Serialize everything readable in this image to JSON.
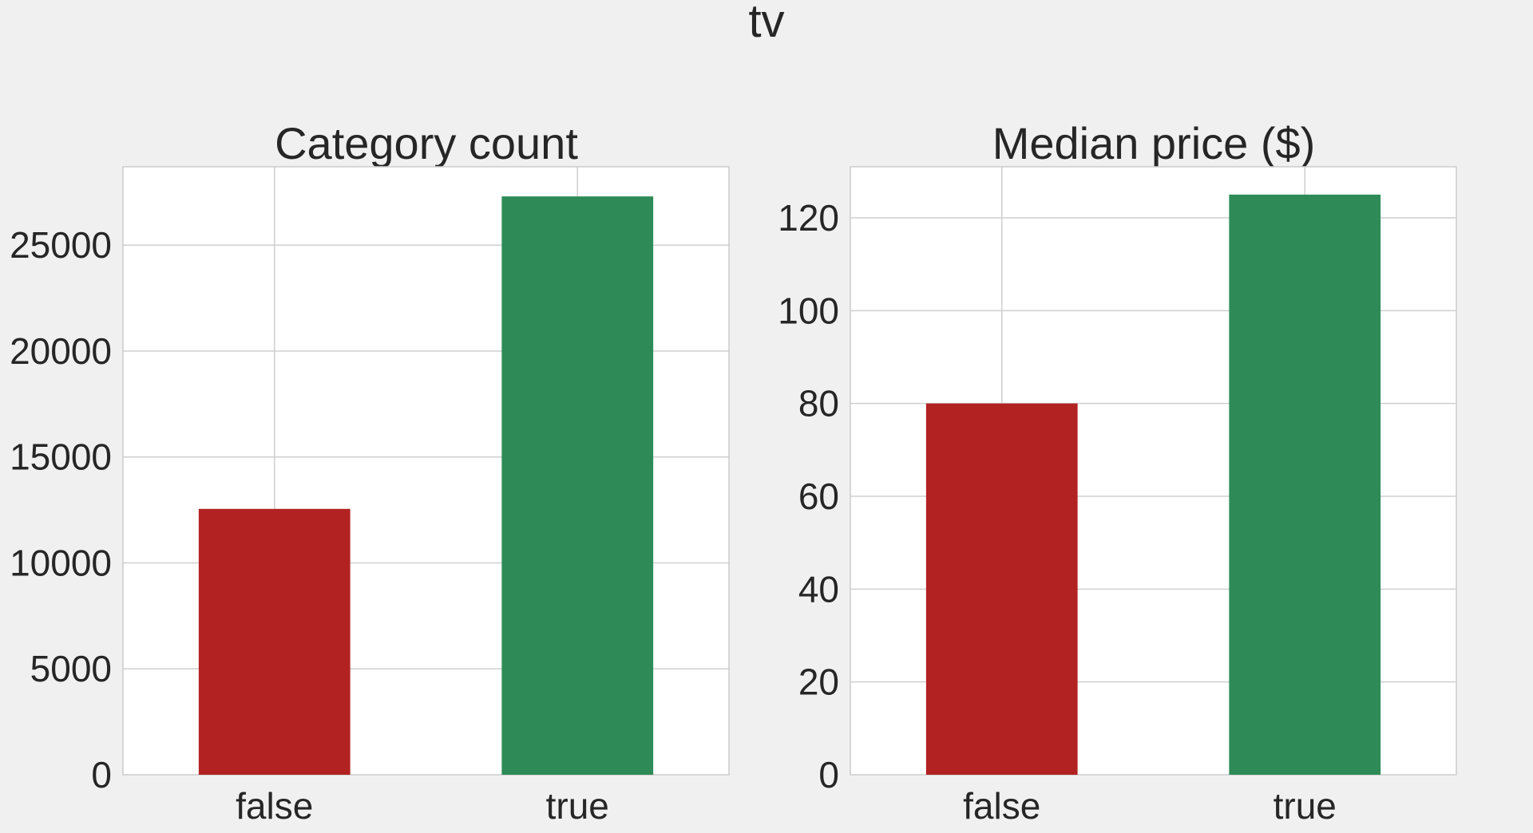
{
  "figure": {
    "title": "tv",
    "background_color": "#f0f0f0"
  },
  "chart_data": [
    {
      "type": "bar",
      "title": "Category count",
      "xlabel": "",
      "ylabel": "",
      "categories": [
        "false",
        "true"
      ],
      "values": [
        12550,
        27300
      ],
      "colors": [
        "#b22222",
        "#2e8b57"
      ],
      "ylim": [
        0,
        28700
      ],
      "yticks": [
        0,
        5000,
        10000,
        15000,
        20000,
        25000
      ],
      "grid": true,
      "legend": "none"
    },
    {
      "type": "bar",
      "title": "Median price ($)",
      "xlabel": "",
      "ylabel": "",
      "categories": [
        "false",
        "true"
      ],
      "values": [
        80,
        125
      ],
      "colors": [
        "#b22222",
        "#2e8b57"
      ],
      "ylim": [
        0,
        131
      ],
      "yticks": [
        0,
        20,
        40,
        60,
        80,
        100,
        120
      ],
      "grid": true,
      "legend": "none"
    }
  ]
}
